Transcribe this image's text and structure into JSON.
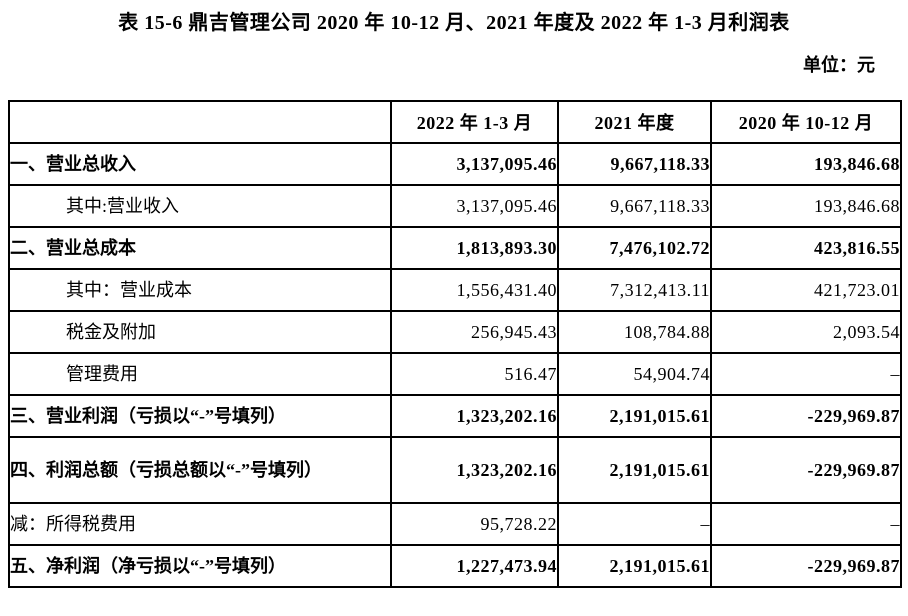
{
  "page": {
    "title": "表 15-6 鼎吉管理公司 2020 年 10-12 月、2021 年度及 2022 年 1-3 月利润表",
    "unit_label": "单位：元"
  },
  "table": {
    "columns": [
      "",
      "2022 年 1-3 月",
      "2021 年度",
      "2020 年 10-12 月"
    ],
    "rows": [
      {
        "label": "一、营业总收入",
        "indent": 0,
        "bold": true,
        "tall": false,
        "values": [
          "3,137,095.46",
          "9,667,118.33",
          "193,846.68"
        ]
      },
      {
        "label": "其中:营业收入",
        "indent": 1,
        "bold": false,
        "tall": false,
        "values": [
          "3,137,095.46",
          "9,667,118.33",
          "193,846.68"
        ]
      },
      {
        "label": "二、营业总成本",
        "indent": 0,
        "bold": true,
        "tall": false,
        "values": [
          "1,813,893.30",
          "7,476,102.72",
          "423,816.55"
        ]
      },
      {
        "label": "其中：营业成本",
        "indent": 1,
        "bold": false,
        "tall": false,
        "values": [
          "1,556,431.40",
          "7,312,413.11",
          "421,723.01"
        ]
      },
      {
        "label": "税金及附加",
        "indent": 1,
        "bold": false,
        "tall": false,
        "values": [
          "256,945.43",
          "108,784.88",
          "2,093.54"
        ]
      },
      {
        "label": "管理费用",
        "indent": 1,
        "bold": false,
        "tall": false,
        "values": [
          "516.47",
          "54,904.74",
          "–"
        ]
      },
      {
        "label": "三、营业利润（亏损以“-”号填列）",
        "indent": 0,
        "bold": true,
        "tall": false,
        "values": [
          "1,323,202.16",
          "2,191,015.61",
          "-229,969.87"
        ]
      },
      {
        "label": "四、利润总额（亏损总额以“-”号填列）",
        "indent": 0,
        "bold": true,
        "tall": true,
        "values": [
          "1,323,202.16",
          "2,191,015.61",
          "-229,969.87"
        ]
      },
      {
        "label": "减：所得税费用",
        "indent": 0,
        "bold": false,
        "tall": false,
        "values": [
          "95,728.22",
          "–",
          "–"
        ]
      },
      {
        "label": "五、净利润（净亏损以“-”号填列）",
        "indent": 0,
        "bold": true,
        "tall": false,
        "values": [
          "1,227,473.94",
          "2,191,015.61",
          "-229,969.87"
        ]
      }
    ]
  }
}
